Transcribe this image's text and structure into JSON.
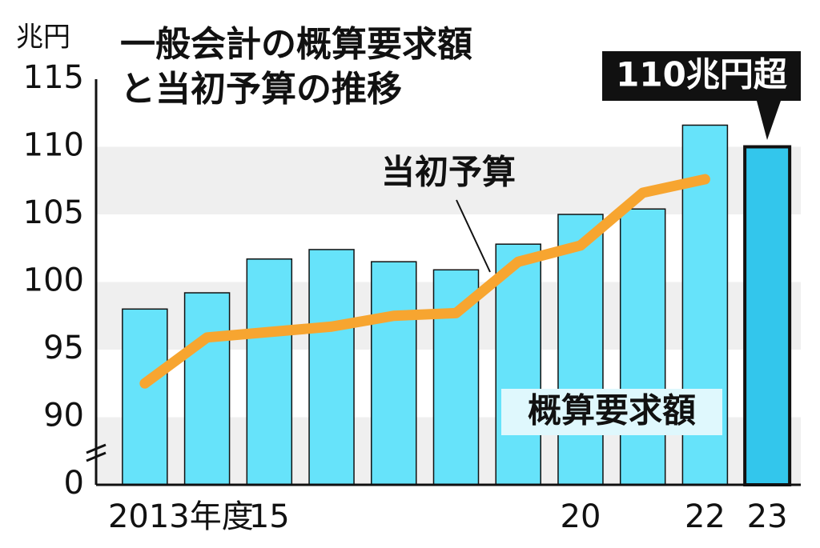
{
  "chart_data": {
    "type": "bar",
    "title": [
      "一般会計の概算要求額",
      "と当初予算の推移"
    ],
    "unit": "兆円",
    "categories": [
      "2013年度",
      null,
      "15",
      null,
      null,
      null,
      null,
      "20",
      null,
      "22",
      "23"
    ],
    "series": [
      {
        "name": "概算要求額",
        "type": "bar",
        "color": "#66e3fa",
        "colors": [
          "#66e3fa",
          "#66e3fa",
          "#66e3fa",
          "#66e3fa",
          "#66e3fa",
          "#66e3fa",
          "#66e3fa",
          "#66e3fa",
          "#66e3fa",
          "#66e3fa",
          "#33c6ec"
        ],
        "values": [
          98.0,
          99.2,
          101.7,
          102.4,
          101.5,
          100.9,
          102.8,
          105.0,
          105.4,
          111.6,
          110.0
        ]
      },
      {
        "name": "当初予算",
        "type": "line",
        "color": "#f7a530",
        "values": [
          92.5,
          95.9,
          96.3,
          96.7,
          97.5,
          97.7,
          101.5,
          102.7,
          106.6,
          107.6,
          null
        ]
      }
    ],
    "annotations": [
      "110兆円超"
    ],
    "ylim": [
      0,
      115
    ],
    "yticks": [
      0,
      90,
      95,
      100,
      105,
      110,
      115
    ],
    "broken_axis": true,
    "grid": true
  }
}
